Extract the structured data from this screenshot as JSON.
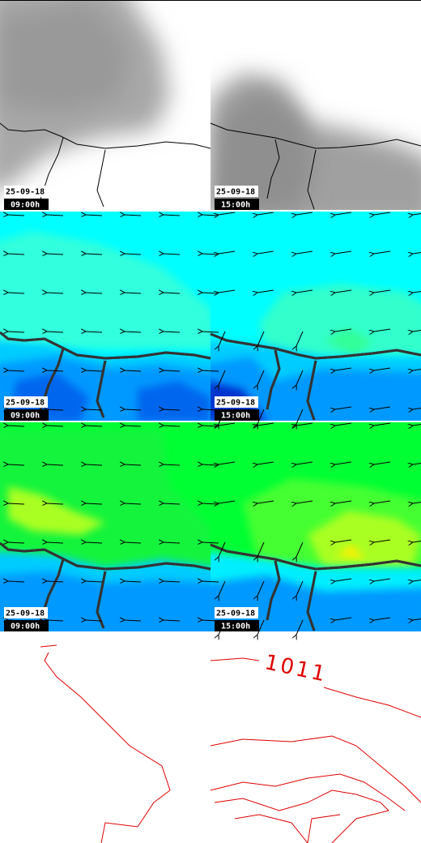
{
  "panels": [
    {
      "date": "25-09-18",
      "time": "09:00h"
    },
    {
      "date": "25-09-18",
      "time": "15:00h"
    },
    {
      "date": "25-09-18",
      "time": "09:00h"
    },
    {
      "date": "25-09-18",
      "time": "15:00h"
    },
    {
      "date": "25-09-18",
      "time": "09:00h"
    },
    {
      "date": "25-09-18",
      "time": "15:00h"
    }
  ],
  "contour_label": "1011"
}
